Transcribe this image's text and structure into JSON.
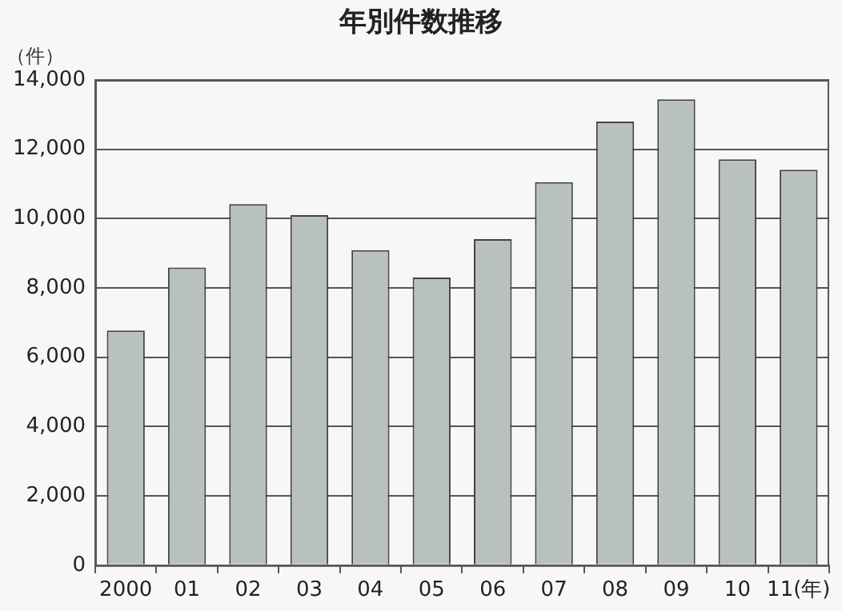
{
  "chart_data": {
    "type": "bar",
    "title": "年別件数推移",
    "ylabel": "（件）",
    "categories": [
      "2000",
      "01",
      "02",
      "03",
      "04",
      "05",
      "06",
      "07",
      "08",
      "09",
      "10",
      "11(年)"
    ],
    "values": [
      6770,
      8590,
      10420,
      10100,
      9090,
      8300,
      9410,
      11050,
      12800,
      13440,
      11710,
      11410
    ],
    "color": "#b9c1bf",
    "ylim": [
      0,
      14000
    ],
    "yticks": [
      {
        "value": 0,
        "label": "0"
      },
      {
        "value": 2000,
        "label": "2,000"
      },
      {
        "value": 4000,
        "label": "4,000"
      },
      {
        "value": 6000,
        "label": "6,000"
      },
      {
        "value": 8000,
        "label": "8,000"
      },
      {
        "value": 10000,
        "label": "10,000"
      },
      {
        "value": 12000,
        "label": "12,000"
      },
      {
        "value": 14000,
        "label": "14,000"
      }
    ],
    "grid": "y",
    "legend": false
  }
}
